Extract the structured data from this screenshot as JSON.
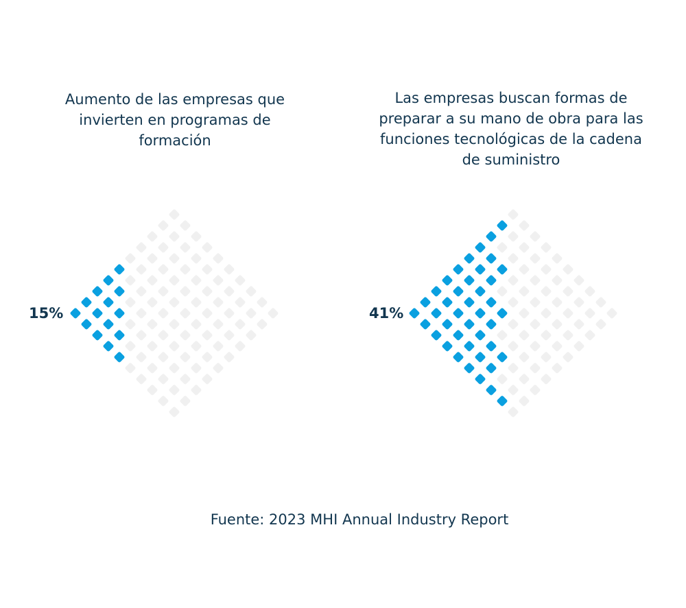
{
  "chart_data": [
    {
      "type": "waffle",
      "title": "Aumento de las empresas que invierten en programas de formación",
      "value": 15,
      "value_label": "15%",
      "total": 100,
      "fill_color": "#0aa0e0",
      "empty_color": "#f0f0f0"
    },
    {
      "type": "waffle",
      "title": "Las empresas buscan formas de preparar a su mano de obra para las funciones tecnológicas de la cadena de suministro",
      "value": 41,
      "value_label": "41%",
      "total": 100,
      "fill_color": "#0aa0e0",
      "empty_color": "#f0f0f0"
    }
  ],
  "source": "Fuente: 2023 MHI Annual Industry Report"
}
